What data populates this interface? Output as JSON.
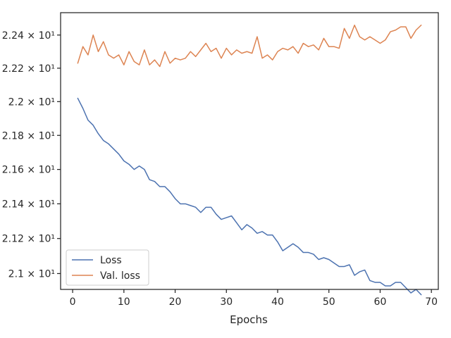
{
  "chart_data": {
    "type": "line",
    "xlabel": "Epochs",
    "ylabel": "",
    "xlim": [
      -2.35,
      71.35
    ],
    "ylim": [
      20.91,
      22.536
    ],
    "y_scale": "log",
    "grid": false,
    "legend_position": "lower-left",
    "x_ticks": [
      0,
      10,
      20,
      30,
      40,
      50,
      60,
      70
    ],
    "x_tick_labels": [
      "0",
      "10",
      "20",
      "30",
      "40",
      "50",
      "60",
      "70"
    ],
    "y_ticks": [
      21.0,
      21.2,
      21.4,
      21.6,
      21.8,
      22.0,
      22.2,
      22.4
    ],
    "y_tick_labels": [
      "2.1 × 10¹",
      "2.12 × 10¹",
      "2.14 × 10¹",
      "2.16 × 10¹",
      "2.18 × 10¹",
      "2.2 × 10¹",
      "2.22 × 10¹",
      "2.24 × 10¹"
    ],
    "x": [
      1,
      2,
      3,
      4,
      5,
      6,
      7,
      8,
      9,
      10,
      11,
      12,
      13,
      14,
      15,
      16,
      17,
      18,
      19,
      20,
      21,
      22,
      23,
      24,
      25,
      26,
      27,
      28,
      29,
      30,
      31,
      32,
      33,
      34,
      35,
      36,
      37,
      38,
      39,
      40,
      41,
      42,
      43,
      44,
      45,
      46,
      47,
      48,
      49,
      50,
      51,
      52,
      53,
      54,
      55,
      56,
      57,
      58,
      59,
      60,
      61,
      62,
      63,
      64,
      65,
      66,
      67,
      68
    ],
    "series": [
      {
        "name": "Loss",
        "color": "#4c72b0",
        "values": [
          22.02,
          21.96,
          21.89,
          21.86,
          21.81,
          21.77,
          21.75,
          21.72,
          21.69,
          21.65,
          21.63,
          21.6,
          21.62,
          21.6,
          21.54,
          21.53,
          21.5,
          21.5,
          21.47,
          21.43,
          21.4,
          21.4,
          21.39,
          21.38,
          21.35,
          21.38,
          21.38,
          21.34,
          21.31,
          21.32,
          21.33,
          21.29,
          21.25,
          21.28,
          21.26,
          21.23,
          21.24,
          21.22,
          21.22,
          21.18,
          21.13,
          21.15,
          21.17,
          21.15,
          21.12,
          21.12,
          21.11,
          21.08,
          21.09,
          21.08,
          21.06,
          21.04,
          21.04,
          21.05,
          20.99,
          21.01,
          21.02,
          20.96,
          20.95,
          20.95,
          20.93,
          20.93,
          20.95,
          20.95,
          20.92,
          20.89,
          20.91,
          20.88
        ]
      },
      {
        "name": "Val. loss",
        "color": "#dd8452",
        "values": [
          22.23,
          22.33,
          22.28,
          22.4,
          22.3,
          22.36,
          22.28,
          22.26,
          22.28,
          22.22,
          22.3,
          22.24,
          22.22,
          22.31,
          22.22,
          22.25,
          22.21,
          22.3,
          22.23,
          22.26,
          22.25,
          22.26,
          22.3,
          22.27,
          22.31,
          22.35,
          22.3,
          22.32,
          22.26,
          22.32,
          22.28,
          22.31,
          22.29,
          22.3,
          22.29,
          22.39,
          22.26,
          22.28,
          22.25,
          22.3,
          22.32,
          22.31,
          22.33,
          22.29,
          22.35,
          22.33,
          22.34,
          22.31,
          22.38,
          22.33,
          22.33,
          22.32,
          22.44,
          22.38,
          22.46,
          22.39,
          22.37,
          22.39,
          22.37,
          22.35,
          22.37,
          22.42,
          22.43,
          22.45,
          22.45,
          22.38,
          22.43,
          22.46
        ]
      }
    ]
  }
}
